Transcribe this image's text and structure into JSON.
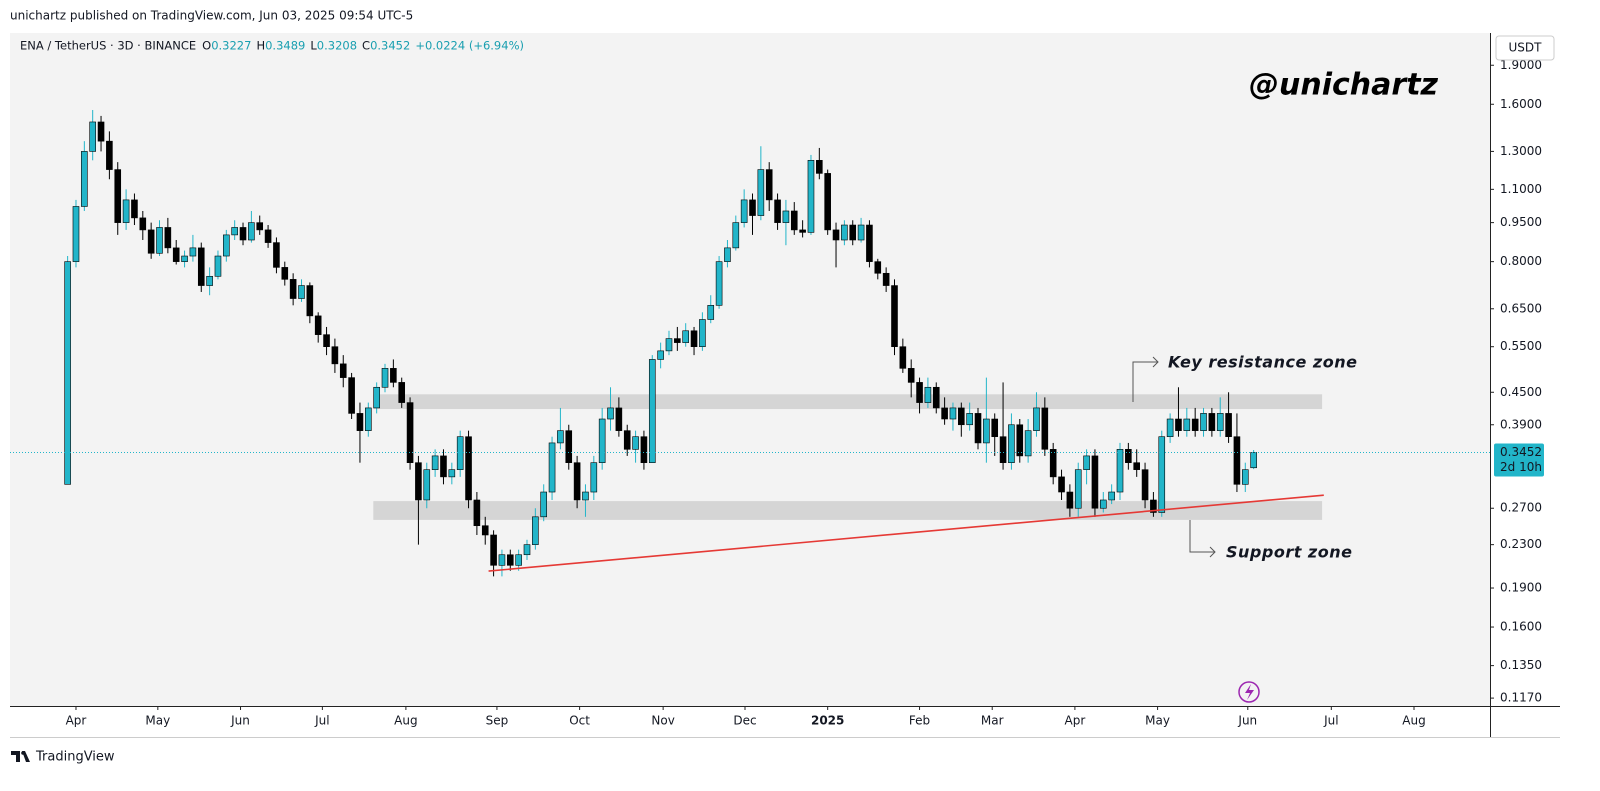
{
  "header": "unichartz published on TradingView.com, Jun 03, 2025 09:54 UTC-5",
  "footer": "TradingView",
  "chart_data": {
    "type": "candlestick",
    "symbol": "ENA / TetherUS · 3D · BINANCE",
    "ohlc_legend": [
      {
        "key": "O",
        "value": 0.3227
      },
      {
        "key": "H",
        "value": 0.3489
      },
      {
        "key": "L",
        "value": 0.3208
      },
      {
        "key": "C",
        "value": 0.3452
      }
    ],
    "change": "+0.0224 (+6.94%)",
    "watermark": "@unichartz",
    "currency": "USDT",
    "last_price": 0.3452,
    "countdown": "2d 10h",
    "up_color": "#22b5c9",
    "down_color": "#000000",
    "grid": false,
    "log_scale": true,
    "xlim": [
      -6.9,
      170.3
    ],
    "xticks": [
      {
        "value": 1,
        "label": "Apr"
      },
      {
        "value": 10.8,
        "label": "May"
      },
      {
        "value": 20.7,
        "label": "Jun"
      },
      {
        "value": 30.5,
        "label": "Jul"
      },
      {
        "value": 40.5,
        "label": "Aug"
      },
      {
        "value": 51.4,
        "label": "Sep"
      },
      {
        "value": 61.3,
        "label": "Oct"
      },
      {
        "value": 71.3,
        "label": "Nov"
      },
      {
        "value": 81.1,
        "label": "Dec"
      },
      {
        "value": 91,
        "label": "2025"
      },
      {
        "value": 102,
        "label": "Feb"
      },
      {
        "value": 110.7,
        "label": "Mar"
      },
      {
        "value": 120.6,
        "label": "Apr"
      },
      {
        "value": 130.5,
        "label": "May"
      },
      {
        "value": 141.3,
        "label": "Jun"
      },
      {
        "value": 151.3,
        "label": "Jul"
      },
      {
        "value": 161.2,
        "label": "Aug"
      }
    ],
    "ylim": [
      0.113,
      2.19
    ],
    "yticks": [
      {
        "value": 1.9,
        "label": "1.9000"
      },
      {
        "value": 1.6,
        "label": "1.6000"
      },
      {
        "value": 1.3,
        "label": "1.3000"
      },
      {
        "value": 1.1,
        "label": "1.1000"
      },
      {
        "value": 0.95,
        "label": "0.9500"
      },
      {
        "value": 0.8,
        "label": "0.8000"
      },
      {
        "value": 0.65,
        "label": "0.6500"
      },
      {
        "value": 0.55,
        "label": "0.5500"
      },
      {
        "value": 0.45,
        "label": "0.4500"
      },
      {
        "value": 0.39,
        "label": "0.3900"
      },
      {
        "value": 0.27,
        "label": "0.2700"
      },
      {
        "value": 0.23,
        "label": "0.2300"
      },
      {
        "value": 0.19,
        "label": "0.1900"
      },
      {
        "value": 0.16,
        "label": "0.1600"
      },
      {
        "value": 0.135,
        "label": "0.1350"
      },
      {
        "value": 0.117,
        "label": "0.1170"
      }
    ],
    "zones": [
      {
        "label": "Key resistance zone",
        "range": [
          0.418,
          0.446
        ],
        "x": [
          36.6,
          150.2
        ]
      },
      {
        "label": "Support zone",
        "range": [
          0.2565,
          0.2786
        ],
        "x": [
          36.6,
          150.2
        ]
      }
    ],
    "trendline": {
      "x": [
        50.4,
        150.4
      ],
      "y": [
        0.2047,
        0.286
      ],
      "color": "#e53935"
    },
    "ohlc": [
      [
        0.3,
        0.82,
        0.3,
        0.8
      ],
      [
        0.8,
        1.05,
        0.78,
        1.02
      ],
      [
        1.02,
        1.36,
        1.0,
        1.3
      ],
      [
        1.3,
        1.56,
        1.25,
        1.48
      ],
      [
        1.48,
        1.52,
        1.3,
        1.36
      ],
      [
        1.36,
        1.42,
        1.15,
        1.2
      ],
      [
        1.2,
        1.24,
        0.9,
        0.95
      ],
      [
        0.95,
        1.1,
        0.92,
        1.05
      ],
      [
        1.05,
        1.08,
        0.94,
        0.97
      ],
      [
        0.97,
        1.0,
        0.88,
        0.92
      ],
      [
        0.92,
        0.95,
        0.81,
        0.83
      ],
      [
        0.83,
        0.96,
        0.82,
        0.93
      ],
      [
        0.93,
        0.97,
        0.83,
        0.85
      ],
      [
        0.85,
        0.88,
        0.79,
        0.8
      ],
      [
        0.8,
        0.84,
        0.78,
        0.82
      ],
      [
        0.82,
        0.9,
        0.8,
        0.85
      ],
      [
        0.85,
        0.87,
        0.7,
        0.72
      ],
      [
        0.72,
        0.78,
        0.69,
        0.75
      ],
      [
        0.75,
        0.84,
        0.74,
        0.82
      ],
      [
        0.82,
        0.92,
        0.8,
        0.9
      ],
      [
        0.9,
        0.96,
        0.88,
        0.93
      ],
      [
        0.93,
        0.95,
        0.86,
        0.88
      ],
      [
        0.88,
        1.0,
        0.87,
        0.95
      ],
      [
        0.95,
        0.98,
        0.9,
        0.92
      ],
      [
        0.92,
        0.94,
        0.85,
        0.87
      ],
      [
        0.87,
        0.89,
        0.76,
        0.78
      ],
      [
        0.78,
        0.8,
        0.72,
        0.74
      ],
      [
        0.74,
        0.76,
        0.66,
        0.68
      ],
      [
        0.68,
        0.74,
        0.67,
        0.72
      ],
      [
        0.72,
        0.73,
        0.61,
        0.63
      ],
      [
        0.63,
        0.64,
        0.56,
        0.58
      ],
      [
        0.58,
        0.6,
        0.53,
        0.55
      ],
      [
        0.55,
        0.57,
        0.49,
        0.51
      ],
      [
        0.51,
        0.53,
        0.46,
        0.48
      ],
      [
        0.48,
        0.49,
        0.4,
        0.41
      ],
      [
        0.41,
        0.43,
        0.33,
        0.38
      ],
      [
        0.38,
        0.43,
        0.37,
        0.42
      ],
      [
        0.42,
        0.47,
        0.41,
        0.46
      ],
      [
        0.46,
        0.51,
        0.45,
        0.5
      ],
      [
        0.5,
        0.52,
        0.46,
        0.47
      ],
      [
        0.47,
        0.48,
        0.42,
        0.43
      ],
      [
        0.43,
        0.44,
        0.32,
        0.33
      ],
      [
        0.33,
        0.34,
        0.23,
        0.28
      ],
      [
        0.28,
        0.33,
        0.27,
        0.32
      ],
      [
        0.32,
        0.35,
        0.31,
        0.34
      ],
      [
        0.34,
        0.35,
        0.3,
        0.31
      ],
      [
        0.31,
        0.33,
        0.3,
        0.32
      ],
      [
        0.32,
        0.38,
        0.31,
        0.37
      ],
      [
        0.37,
        0.38,
        0.27,
        0.28
      ],
      [
        0.28,
        0.29,
        0.24,
        0.25
      ],
      [
        0.25,
        0.26,
        0.23,
        0.24
      ],
      [
        0.24,
        0.245,
        0.2,
        0.21
      ],
      [
        0.21,
        0.225,
        0.2,
        0.22
      ],
      [
        0.22,
        0.225,
        0.205,
        0.21
      ],
      [
        0.21,
        0.225,
        0.205,
        0.22
      ],
      [
        0.22,
        0.235,
        0.215,
        0.23
      ],
      [
        0.23,
        0.27,
        0.225,
        0.26
      ],
      [
        0.26,
        0.3,
        0.255,
        0.29
      ],
      [
        0.29,
        0.37,
        0.28,
        0.36
      ],
      [
        0.36,
        0.42,
        0.35,
        0.38
      ],
      [
        0.38,
        0.39,
        0.32,
        0.33
      ],
      [
        0.33,
        0.34,
        0.27,
        0.28
      ],
      [
        0.28,
        0.3,
        0.26,
        0.29
      ],
      [
        0.29,
        0.34,
        0.28,
        0.33
      ],
      [
        0.33,
        0.42,
        0.32,
        0.4
      ],
      [
        0.4,
        0.46,
        0.38,
        0.42
      ],
      [
        0.42,
        0.44,
        0.37,
        0.38
      ],
      [
        0.38,
        0.39,
        0.34,
        0.35
      ],
      [
        0.35,
        0.38,
        0.33,
        0.37
      ],
      [
        0.37,
        0.38,
        0.32,
        0.33
      ],
      [
        0.33,
        0.53,
        0.33,
        0.52
      ],
      [
        0.52,
        0.56,
        0.5,
        0.54
      ],
      [
        0.54,
        0.59,
        0.53,
        0.57
      ],
      [
        0.57,
        0.6,
        0.54,
        0.56
      ],
      [
        0.56,
        0.61,
        0.55,
        0.59
      ],
      [
        0.59,
        0.6,
        0.53,
        0.55
      ],
      [
        0.55,
        0.64,
        0.54,
        0.62
      ],
      [
        0.62,
        0.69,
        0.61,
        0.66
      ],
      [
        0.66,
        0.82,
        0.65,
        0.8
      ],
      [
        0.8,
        0.88,
        0.78,
        0.85
      ],
      [
        0.85,
        0.98,
        0.84,
        0.95
      ],
      [
        0.95,
        1.1,
        0.93,
        1.05
      ],
      [
        1.05,
        1.08,
        0.9,
        0.98
      ],
      [
        0.98,
        1.33,
        0.96,
        1.2
      ],
      [
        1.2,
        1.24,
        1.0,
        1.05
      ],
      [
        1.05,
        1.08,
        0.92,
        0.95
      ],
      [
        0.95,
        1.05,
        0.86,
        1.0
      ],
      [
        1.0,
        1.04,
        0.9,
        0.92
      ],
      [
        0.92,
        0.96,
        0.89,
        0.91
      ],
      [
        0.91,
        1.28,
        0.9,
        1.25
      ],
      [
        1.25,
        1.32,
        1.15,
        1.18
      ],
      [
        1.18,
        1.2,
        0.9,
        0.92
      ],
      [
        0.92,
        0.95,
        0.78,
        0.88
      ],
      [
        0.88,
        0.96,
        0.86,
        0.94
      ],
      [
        0.94,
        0.96,
        0.86,
        0.88
      ],
      [
        0.88,
        0.97,
        0.87,
        0.94
      ],
      [
        0.94,
        0.96,
        0.78,
        0.8
      ],
      [
        0.8,
        0.81,
        0.74,
        0.76
      ],
      [
        0.76,
        0.78,
        0.7,
        0.72
      ],
      [
        0.72,
        0.74,
        0.53,
        0.55
      ],
      [
        0.55,
        0.57,
        0.49,
        0.5
      ],
      [
        0.5,
        0.52,
        0.44,
        0.47
      ],
      [
        0.47,
        0.48,
        0.41,
        0.43
      ],
      [
        0.43,
        0.48,
        0.42,
        0.46
      ],
      [
        0.46,
        0.47,
        0.41,
        0.42
      ],
      [
        0.42,
        0.44,
        0.39,
        0.4
      ],
      [
        0.4,
        0.43,
        0.38,
        0.42
      ],
      [
        0.42,
        0.43,
        0.37,
        0.39
      ],
      [
        0.39,
        0.43,
        0.38,
        0.41
      ],
      [
        0.41,
        0.42,
        0.35,
        0.36
      ],
      [
        0.36,
        0.48,
        0.33,
        0.4
      ],
      [
        0.4,
        0.41,
        0.34,
        0.37
      ],
      [
        0.37,
        0.47,
        0.32,
        0.33
      ],
      [
        0.33,
        0.41,
        0.32,
        0.39
      ],
      [
        0.39,
        0.4,
        0.33,
        0.34
      ],
      [
        0.34,
        0.4,
        0.33,
        0.38
      ],
      [
        0.38,
        0.45,
        0.37,
        0.42
      ],
      [
        0.42,
        0.44,
        0.34,
        0.35
      ],
      [
        0.35,
        0.36,
        0.3,
        0.31
      ],
      [
        0.31,
        0.32,
        0.28,
        0.29
      ],
      [
        0.29,
        0.3,
        0.26,
        0.27
      ],
      [
        0.27,
        0.33,
        0.26,
        0.32
      ],
      [
        0.32,
        0.35,
        0.3,
        0.34
      ],
      [
        0.34,
        0.35,
        0.26,
        0.27
      ],
      [
        0.27,
        0.29,
        0.265,
        0.28
      ],
      [
        0.28,
        0.3,
        0.275,
        0.29
      ],
      [
        0.29,
        0.36,
        0.28,
        0.35
      ],
      [
        0.35,
        0.36,
        0.32,
        0.33
      ],
      [
        0.33,
        0.35,
        0.31,
        0.32
      ],
      [
        0.32,
        0.33,
        0.27,
        0.28
      ],
      [
        0.28,
        0.29,
        0.26,
        0.265
      ],
      [
        0.265,
        0.38,
        0.26,
        0.37
      ],
      [
        0.37,
        0.41,
        0.36,
        0.4
      ],
      [
        0.4,
        0.46,
        0.37,
        0.38
      ],
      [
        0.38,
        0.42,
        0.37,
        0.4
      ],
      [
        0.4,
        0.42,
        0.37,
        0.38
      ],
      [
        0.38,
        0.42,
        0.37,
        0.41
      ],
      [
        0.41,
        0.42,
        0.37,
        0.38
      ],
      [
        0.38,
        0.44,
        0.37,
        0.41
      ],
      [
        0.41,
        0.45,
        0.36,
        0.37
      ],
      [
        0.37,
        0.41,
        0.29,
        0.3
      ],
      [
        0.3,
        0.33,
        0.29,
        0.32
      ],
      [
        0.3227,
        0.3489,
        0.3208,
        0.3452
      ]
    ]
  }
}
